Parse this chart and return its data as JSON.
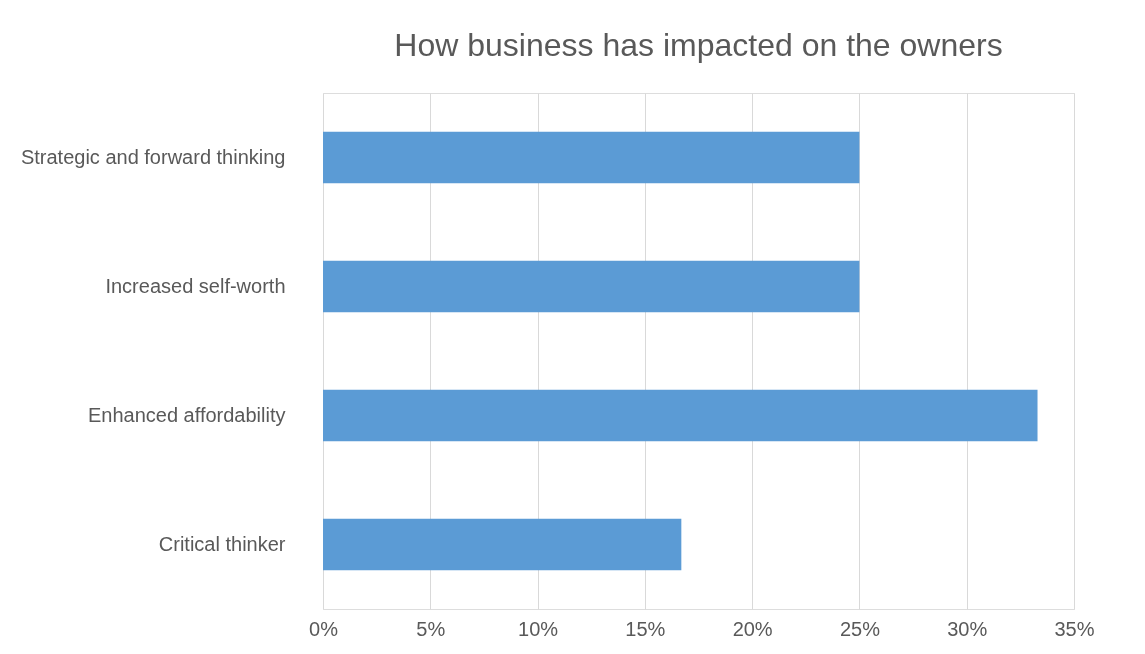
{
  "chart_data": {
    "type": "bar",
    "orientation": "horizontal",
    "title": "How business has impacted on the owners",
    "categories": [
      "Strategic and forward thinking",
      "Increased self-worth",
      "Enhanced affordability",
      "Critical thinker"
    ],
    "values": [
      25,
      25,
      33.3,
      16.7
    ],
    "color": "#5b9bd5",
    "xlim": [
      0,
      35
    ],
    "xticks": [
      {
        "value": 0,
        "label": "0%"
      },
      {
        "value": 5,
        "label": "5%"
      },
      {
        "value": 10,
        "label": "10%"
      },
      {
        "value": 15,
        "label": "15%"
      },
      {
        "value": 20,
        "label": "20%"
      },
      {
        "value": 25,
        "label": "25%"
      },
      {
        "value": 30,
        "label": "30%"
      },
      {
        "value": 35,
        "label": "35%"
      }
    ],
    "grid": "x"
  }
}
